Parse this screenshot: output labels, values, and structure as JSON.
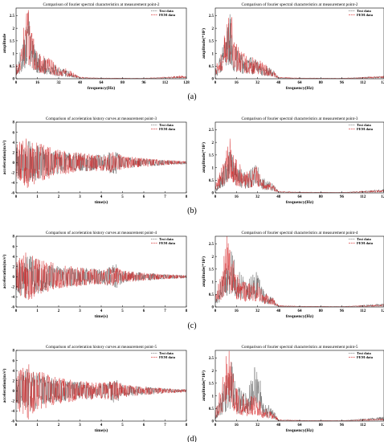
{
  "figure": {
    "captions": [
      "(a)",
      "(b)",
      "(c)",
      "(d)"
    ]
  },
  "chart_data": [
    {
      "id": "a-left",
      "type": "line",
      "panel": "(a)",
      "title": "Comparison of fourier spectral characteristics at measurement point-2",
      "xlabel": "frequency(Hz)",
      "ylabel": "amplitude",
      "xlim": [
        0,
        128
      ],
      "ylim": [
        0,
        2.8
      ],
      "xticks": [
        0,
        16,
        32,
        48,
        64,
        80,
        96,
        112,
        128
      ],
      "yticks": [
        0,
        0.5,
        1,
        1.5,
        2,
        2.5
      ],
      "legend": "top-right",
      "grid": false,
      "series": [
        {
          "name": "Test data",
          "color": "#555555",
          "peak_x": 9,
          "peak": 2.3,
          "x": [
            0,
            5,
            9,
            12,
            16,
            24,
            32,
            40,
            48,
            64,
            96,
            128
          ],
          "y": [
            0.4,
            1.2,
            2.3,
            1.3,
            0.9,
            0.6,
            0.4,
            0.25,
            0.05,
            0.03,
            0.02,
            0.1
          ]
        },
        {
          "name": "FEM data",
          "color": "#d62728",
          "peak_x": 8,
          "peak": 2.6,
          "x": [
            0,
            5,
            8,
            12,
            16,
            24,
            32,
            40,
            48,
            64,
            96,
            128
          ],
          "y": [
            0.5,
            1.4,
            2.6,
            1.5,
            1.0,
            0.7,
            0.45,
            0.3,
            0.06,
            0.03,
            0.02,
            0.12
          ]
        }
      ]
    },
    {
      "id": "a-right",
      "type": "line",
      "panel": "(a)",
      "title": "Comparison of fourier spectral characteristics at measurement point-2",
      "xlabel": "frequency(Hz)",
      "ylabel": "amplitude(*10²)",
      "xlim": [
        0,
        128
      ],
      "ylim": [
        0,
        2.8
      ],
      "xticks": [
        0,
        16,
        32,
        48,
        64,
        80,
        96,
        112,
        128
      ],
      "yticks": [
        0,
        0.5,
        1,
        1.5,
        2,
        2.5
      ],
      "legend": "top-right",
      "grid": false,
      "series": [
        {
          "name": "Test data",
          "color": "#555555",
          "peak_x": 11,
          "peak": 2.3,
          "x": [
            0,
            5,
            11,
            14,
            20,
            28,
            36,
            44,
            48,
            64,
            96,
            128
          ],
          "y": [
            0.3,
            1.0,
            2.3,
            1.2,
            0.8,
            0.7,
            0.5,
            0.3,
            0.05,
            0.03,
            0.02,
            0.1
          ]
        },
        {
          "name": "FEM data",
          "color": "#d62728",
          "peak_x": 12,
          "peak": 2.5,
          "x": [
            0,
            5,
            12,
            14,
            20,
            28,
            36,
            44,
            48,
            64,
            96,
            128
          ],
          "y": [
            0.4,
            1.1,
            2.5,
            1.3,
            0.9,
            0.75,
            0.55,
            0.3,
            0.06,
            0.03,
            0.02,
            0.1
          ]
        }
      ]
    },
    {
      "id": "b-left",
      "type": "line",
      "panel": "(b)",
      "title": "Comparison of acceleration history curves at measurement point-3",
      "xlabel": "time(s)",
      "ylabel": "acceleration(m/s²)",
      "xlim": [
        0,
        8
      ],
      "ylim": [
        -6,
        8
      ],
      "xticks": [
        0,
        1,
        2,
        3,
        4,
        5,
        6,
        7,
        8
      ],
      "yticks": [
        -6,
        -4,
        -2,
        0,
        2,
        4,
        6,
        8
      ],
      "legend": "top-right",
      "grid": false,
      "series": [
        {
          "name": "Test data",
          "color": "#555555",
          "peak": 4.5,
          "x": [
            0,
            0.5,
            1,
            2,
            3,
            4,
            4.7,
            5,
            6,
            7,
            8
          ],
          "y": [
            3.0,
            4.5,
            3.5,
            2.2,
            1.8,
            1.5,
            2.5,
            1.2,
            0.8,
            0.5,
            0.3
          ]
        },
        {
          "name": "FEM data",
          "color": "#d62728",
          "peak": 5.5,
          "x": [
            0,
            0.5,
            1,
            2,
            3,
            4,
            4.7,
            5,
            6,
            7,
            8
          ],
          "y": [
            3.5,
            5.5,
            4.0,
            2.5,
            2.0,
            1.6,
            2.2,
            1.3,
            0.9,
            0.5,
            0.3
          ]
        }
      ]
    },
    {
      "id": "b-right",
      "type": "line",
      "panel": "(b)",
      "title": "Comparison of fourier spectral characteristics at measurement point-3",
      "xlabel": "frequency(Hz)",
      "ylabel": "amplitude(*10²)",
      "xlim": [
        0,
        128
      ],
      "ylim": [
        0,
        2.8
      ],
      "xticks": [
        0,
        16,
        32,
        48,
        64,
        80,
        96,
        112,
        128
      ],
      "yticks": [
        0,
        0.5,
        1,
        1.5,
        2,
        2.5
      ],
      "legend": "top-right",
      "grid": false,
      "series": [
        {
          "name": "Test data",
          "color": "#555555",
          "peak_x": 11,
          "peak": 1.7,
          "x": [
            0,
            5,
            11,
            16,
            24,
            32,
            36,
            44,
            48,
            64,
            96,
            128
          ],
          "y": [
            0.2,
            0.8,
            1.7,
            1.0,
            0.6,
            1.1,
            0.5,
            0.3,
            0.05,
            0.03,
            0.02,
            0.12
          ]
        },
        {
          "name": "FEM data",
          "color": "#d62728",
          "peak_x": 12,
          "peak": 2.0,
          "x": [
            0,
            5,
            12,
            16,
            24,
            32,
            36,
            44,
            48,
            64,
            96,
            128
          ],
          "y": [
            0.3,
            0.9,
            2.0,
            1.1,
            0.7,
            0.9,
            0.5,
            0.3,
            0.06,
            0.03,
            0.02,
            0.1
          ]
        }
      ]
    },
    {
      "id": "c-left",
      "type": "line",
      "panel": "(c)",
      "title": "Comparison of acceleration history curves at measurement point-4",
      "xlabel": "time(s)",
      "ylabel": "acceleration(m/s²)",
      "xlim": [
        0,
        8
      ],
      "ylim": [
        -6,
        8
      ],
      "xticks": [
        0,
        1,
        2,
        3,
        4,
        5,
        6,
        7,
        8
      ],
      "yticks": [
        -6,
        -4,
        -2,
        0,
        2,
        4,
        6,
        8
      ],
      "legend": "top-right",
      "grid": false,
      "series": [
        {
          "name": "Test data",
          "color": "#555555",
          "peak": 4.5,
          "x": [
            0,
            0.5,
            1,
            2,
            3,
            4,
            4.7,
            5,
            6,
            7,
            8
          ],
          "y": [
            3.0,
            4.5,
            3.5,
            2.2,
            1.8,
            1.5,
            2.5,
            1.2,
            0.8,
            0.5,
            0.3
          ]
        },
        {
          "name": "FEM data",
          "color": "#d62728",
          "peak": 5.0,
          "x": [
            0,
            0.5,
            1,
            2,
            3,
            4,
            4.7,
            5,
            6,
            7,
            8
          ],
          "y": [
            3.2,
            5.0,
            3.8,
            2.4,
            1.9,
            1.5,
            2.0,
            1.2,
            0.8,
            0.5,
            0.3
          ]
        }
      ]
    },
    {
      "id": "c-right",
      "type": "line",
      "panel": "(c)",
      "title": "Comparison of fourier spectral characteristics at measurement point-4",
      "xlabel": "frequency(Hz)",
      "ylabel": "amplitude(*10²)",
      "xlim": [
        0,
        128
      ],
      "ylim": [
        0,
        2.8
      ],
      "xticks": [
        0,
        16,
        32,
        48,
        64,
        80,
        96,
        112,
        128
      ],
      "yticks": [
        0,
        0.5,
        1,
        1.5,
        2,
        2.5
      ],
      "legend": "top-right",
      "grid": false,
      "series": [
        {
          "name": "Test data",
          "color": "#555555",
          "peak_x": 12,
          "peak": 2.0,
          "x": [
            0,
            5,
            12,
            16,
            24,
            32,
            36,
            44,
            48,
            64,
            96,
            128
          ],
          "y": [
            0.3,
            1.0,
            2.0,
            1.3,
            0.9,
            1.2,
            0.6,
            0.3,
            0.05,
            0.03,
            0.02,
            0.12
          ]
        },
        {
          "name": "FEM data",
          "color": "#d62728",
          "peak_x": 9,
          "peak": 2.5,
          "x": [
            0,
            5,
            9,
            16,
            24,
            32,
            36,
            44,
            48,
            64,
            96,
            128
          ],
          "y": [
            0.4,
            1.2,
            2.5,
            1.2,
            0.8,
            0.9,
            0.5,
            0.3,
            0.06,
            0.03,
            0.02,
            0.1
          ]
        }
      ]
    },
    {
      "id": "d-left",
      "type": "line",
      "panel": "(d)",
      "title": "Comparison of acceleration history curves at measurement point-5",
      "xlabel": "time(s)",
      "ylabel": "acceleration(m/s²)",
      "xlim": [
        0,
        8
      ],
      "ylim": [
        -6,
        8
      ],
      "xticks": [
        0,
        1,
        2,
        3,
        4,
        5,
        6,
        7,
        8
      ],
      "yticks": [
        -6,
        -4,
        -2,
        0,
        2,
        4,
        6,
        8
      ],
      "legend": "top-right",
      "grid": false,
      "series": [
        {
          "name": "Test data",
          "color": "#555555",
          "peak": 4.5,
          "x": [
            0,
            0.5,
            1,
            2,
            3,
            4,
            4.7,
            5,
            6,
            7,
            8
          ],
          "y": [
            3.0,
            4.5,
            3.5,
            2.2,
            1.8,
            1.5,
            2.5,
            1.2,
            0.8,
            0.5,
            0.3
          ]
        },
        {
          "name": "FEM data",
          "color": "#d62728",
          "peak": 6.0,
          "x": [
            0,
            0.5,
            1,
            2,
            3,
            4,
            4.7,
            5,
            6,
            7,
            8
          ],
          "y": [
            3.5,
            6.0,
            4.0,
            2.6,
            2.0,
            1.6,
            2.2,
            1.3,
            0.9,
            0.5,
            0.3
          ]
        }
      ]
    },
    {
      "id": "d-right",
      "type": "line",
      "panel": "(d)",
      "title": "Comparison of fourier spectral characteristics at measurement point-5",
      "xlabel": "frequency(Hz)",
      "ylabel": "amplitude(*10²)",
      "xlim": [
        0,
        128
      ],
      "ylim": [
        0,
        2.8
      ],
      "xticks": [
        0,
        16,
        32,
        48,
        64,
        80,
        96,
        112,
        128
      ],
      "yticks": [
        0,
        0.5,
        1,
        1.5,
        2,
        2.5
      ],
      "legend": "top-right",
      "grid": false,
      "series": [
        {
          "name": "Test data",
          "color": "#555555",
          "peak_x": 13,
          "peak": 2.2,
          "x": [
            0,
            5,
            13,
            16,
            24,
            32,
            36,
            44,
            48,
            64,
            96,
            128
          ],
          "y": [
            0.3,
            1.0,
            2.2,
            1.2,
            0.9,
            2.1,
            0.7,
            0.4,
            0.05,
            0.03,
            0.02,
            0.15
          ]
        },
        {
          "name": "FEM data",
          "color": "#d62728",
          "peak_x": 9,
          "peak": 2.7,
          "x": [
            0,
            5,
            9,
            16,
            24,
            32,
            36,
            44,
            48,
            64,
            96,
            128
          ],
          "y": [
            0.4,
            1.3,
            2.7,
            1.1,
            0.8,
            0.9,
            0.5,
            0.3,
            0.06,
            0.03,
            0.02,
            0.1
          ]
        }
      ]
    }
  ]
}
